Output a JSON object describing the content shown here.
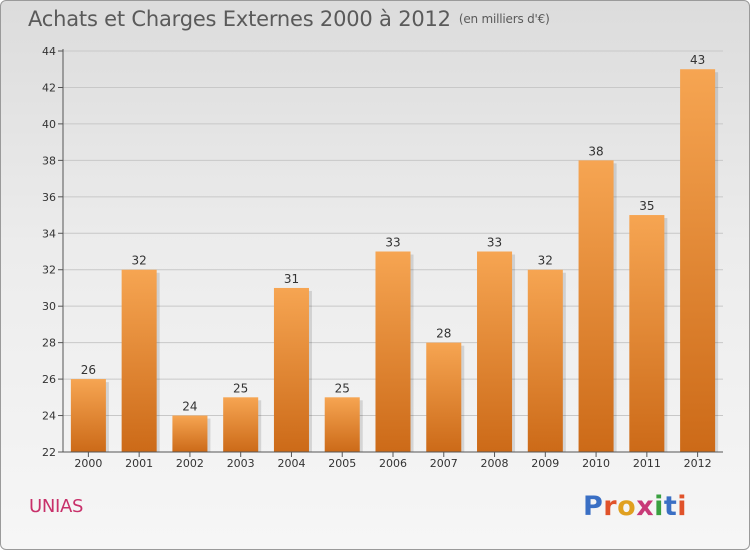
{
  "title": "Achats et Charges Externes 2000 à 2012",
  "subtitle": "(en milliers d'€)",
  "commune": "UNIAS",
  "logo": {
    "text": "Proxiti",
    "colors": [
      "#3a6fc4",
      "#e0522a",
      "#e0a020",
      "#c83a78",
      "#3aa040",
      "#3a6fc4",
      "#e0522a"
    ]
  },
  "chart_data": {
    "type": "bar",
    "title": "Achats et Charges Externes 2000 à 2012",
    "subtitle": "(en milliers d'€)",
    "xlabel": "",
    "ylabel": "",
    "categories": [
      "2000",
      "2001",
      "2002",
      "2003",
      "2004",
      "2005",
      "2006",
      "2007",
      "2008",
      "2009",
      "2010",
      "2011",
      "2012"
    ],
    "values": [
      26,
      32,
      24,
      25,
      31,
      25,
      33,
      28,
      33,
      32,
      38,
      35,
      43
    ],
    "ylim": [
      22,
      44
    ],
    "yticks": [
      22,
      24,
      26,
      28,
      30,
      32,
      34,
      36,
      38,
      40,
      42,
      44
    ],
    "grid": true,
    "bar_color_top": "#f6a552",
    "bar_color_bottom": "#cc6a18"
  }
}
